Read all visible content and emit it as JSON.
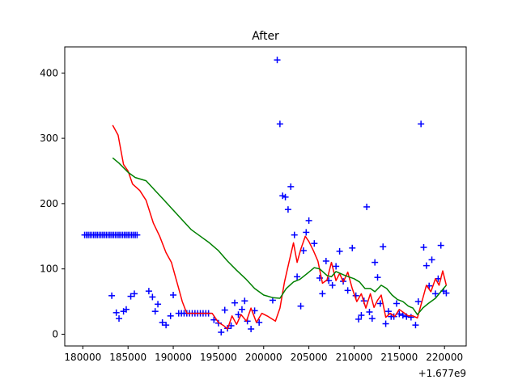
{
  "chart_data": {
    "type": "line",
    "title": "After",
    "xlabel": "",
    "ylabel": "",
    "x_offset_label": "+1.677e9",
    "xlim": [
      1677178000,
      1677222400
    ],
    "ylim": [
      -18,
      440
    ],
    "x_ticks": [
      1677180000,
      1677185000,
      1677190000,
      1677195000,
      1677200000,
      1677205000,
      1677210000,
      1677215000,
      1677220000
    ],
    "x_tick_labels": [
      "180000",
      "185000",
      "190000",
      "195000",
      "200000",
      "205000",
      "210000",
      "215000",
      "220000"
    ],
    "y_ticks": [
      0,
      100,
      200,
      300,
      400
    ],
    "y_tick_labels": [
      "0",
      "100",
      "200",
      "300",
      "400"
    ],
    "grid": false,
    "series": [
      {
        "color": "#0000ff",
        "marker": "+",
        "style": "scatter",
        "x": [
          1677180200,
          1677180400,
          1677180600,
          1677180800,
          1677181000,
          1677181200,
          1677181400,
          1677181600,
          1677181800,
          1677182000,
          1677182200,
          1677182400,
          1677182600,
          1677182800,
          1677183000,
          1677183200,
          1677183400,
          1677183600,
          1677183800,
          1677184000,
          1677184200,
          1677184400,
          1677184600,
          1677184800,
          1677185000,
          1677185200,
          1677185400,
          1677185600,
          1677185800,
          1677186000,
          1677183200,
          1677183700,
          1677184000,
          1677184500,
          1677184800,
          1677185300,
          1677185700,
          1677187300,
          1677187700,
          1677188000,
          1677188300,
          1677188800,
          1677189200,
          1677189700,
          1677190000,
          1677190600,
          1677190900,
          1677191200,
          1677191500,
          1677191800,
          1677192100,
          1677192400,
          1677192700,
          1677193000,
          1677193300,
          1677193600,
          1677193900,
          1677194500,
          1677195000,
          1677195300,
          1677195700,
          1677196000,
          1677196400,
          1677196800,
          1677197200,
          1677197600,
          1677197900,
          1677198200,
          1677198600,
          1677199000,
          1677199500,
          1677201000,
          1677201500,
          1677201800,
          1677202100,
          1677202400,
          1677202700,
          1677203000,
          1677203400,
          1677203700,
          1677204100,
          1677204400,
          1677204700,
          1677205000,
          1677205600,
          1677206200,
          1677206500,
          1677206900,
          1677207200,
          1677207600,
          1677208000,
          1677208400,
          1677208800,
          1677209300,
          1677209800,
          1677210200,
          1677210500,
          1677210800,
          1677211100,
          1677211400,
          1677211700,
          1677212000,
          1677212300,
          1677212600,
          1677212900,
          1677213200,
          1677213500,
          1677213800,
          1677214100,
          1677214400,
          1677214700,
          1677215000,
          1677215400,
          1677215800,
          1677216300,
          1677216800,
          1677217100,
          1677217400,
          1677217700,
          1677218000,
          1677218300,
          1677218600,
          1677219000,
          1677219300,
          1677219600,
          1677219900,
          1677220200
        ],
        "y": [
          152,
          152,
          152,
          152,
          152,
          152,
          152,
          152,
          152,
          152,
          152,
          152,
          152,
          152,
          152,
          152,
          152,
          152,
          152,
          152,
          152,
          152,
          152,
          152,
          152,
          152,
          152,
          152,
          152,
          152,
          59,
          33,
          24,
          35,
          38,
          58,
          62,
          66,
          57,
          35,
          46,
          18,
          14,
          28,
          60,
          32,
          32,
          32,
          32,
          32,
          32,
          32,
          32,
          32,
          32,
          32,
          32,
          22,
          17,
          3,
          37,
          9,
          13,
          48,
          30,
          38,
          51,
          20,
          8,
          36,
          18,
          52,
          420,
          322,
          212,
          210,
          191,
          226,
          152,
          88,
          43,
          128,
          156,
          174,
          139,
          86,
          62,
          112,
          82,
          75,
          104,
          127,
          81,
          67,
          132,
          59,
          23,
          29,
          51,
          195,
          34,
          24,
          110,
          87,
          47,
          134,
          16,
          35,
          27,
          27,
          47,
          31,
          29,
          27,
          26,
          14,
          50,
          322,
          133,
          105,
          74,
          114,
          62,
          85,
          136,
          66,
          63
        ]
      },
      {
        "color": "#ff0000",
        "style": "line",
        "x": [
          1677183300,
          1677183900,
          1677184500,
          1677185000,
          1677185500,
          1677186300,
          1677187000,
          1677187800,
          1677188500,
          1677189200,
          1677189800,
          1677190200,
          1677190600,
          1677191000,
          1677191500,
          1677192200,
          1677192800,
          1677193600,
          1677194300,
          1677195000,
          1677195600,
          1677196000,
          1677196500,
          1677197000,
          1677197500,
          1677198100,
          1677198600,
          1677199200,
          1677199800,
          1677200500,
          1677201300,
          1677201800,
          1677202300,
          1677202800,
          1677203300,
          1677203700,
          1677204100,
          1677204600,
          1677205000,
          1677205500,
          1677206000,
          1677206500,
          1677207000,
          1677207500,
          1677208000,
          1677208400,
          1677208800,
          1677209300,
          1677209800,
          1677210300,
          1677210800,
          1677211300,
          1677211800,
          1677212200,
          1677212600,
          1677213000,
          1677213500,
          1677214000,
          1677214500,
          1677215000,
          1677215500,
          1677216000,
          1677216500,
          1677217000,
          1677217500,
          1677218000,
          1677218500,
          1677219000,
          1677219400,
          1677219800,
          1677220200
        ],
        "y": [
          320,
          305,
          260,
          250,
          230,
          220,
          205,
          170,
          150,
          125,
          110,
          90,
          70,
          50,
          32,
          32,
          32,
          32,
          32,
          18,
          13,
          8,
          28,
          15,
          30,
          20,
          40,
          18,
          32,
          27,
          20,
          40,
          80,
          110,
          140,
          110,
          130,
          150,
          142,
          128,
          112,
          78,
          83,
          110,
          82,
          93,
          80,
          95,
          70,
          50,
          62,
          40,
          62,
          41,
          52,
          60,
          26,
          32,
          27,
          38,
          33,
          28,
          28,
          25,
          50,
          75,
          65,
          85,
          75,
          97,
          75
        ],
        "name": ""
      },
      {
        "color": "#008000",
        "style": "line",
        "x": [
          1677183300,
          1677184000,
          1677185000,
          1677185800,
          1677187000,
          1677188000,
          1677189000,
          1677190000,
          1677191000,
          1677192000,
          1677193000,
          1677194000,
          1677195000,
          1677196000,
          1677197000,
          1677198000,
          1677199000,
          1677200000,
          1677201000,
          1677201800,
          1677202500,
          1677203300,
          1677204000,
          1677205000,
          1677205600,
          1677206200,
          1677207000,
          1677207500,
          1677208000,
          1677209000,
          1677210000,
          1677210600,
          1677211200,
          1677211800,
          1677212300,
          1677213000,
          1677213600,
          1677214200,
          1677214800,
          1677215400,
          1677216000,
          1677216500,
          1677217000,
          1677217600,
          1677218200,
          1677219000,
          1677219600,
          1677220200
        ],
        "y": [
          270,
          262,
          248,
          240,
          235,
          220,
          205,
          190,
          175,
          160,
          150,
          140,
          128,
          112,
          98,
          85,
          70,
          60,
          56,
          55,
          70,
          80,
          84,
          95,
          102,
          100,
          90,
          88,
          96,
          90,
          85,
          80,
          70,
          70,
          65,
          75,
          70,
          60,
          53,
          50,
          43,
          40,
          30,
          40,
          47,
          55,
          65,
          75
        ]
      }
    ]
  }
}
